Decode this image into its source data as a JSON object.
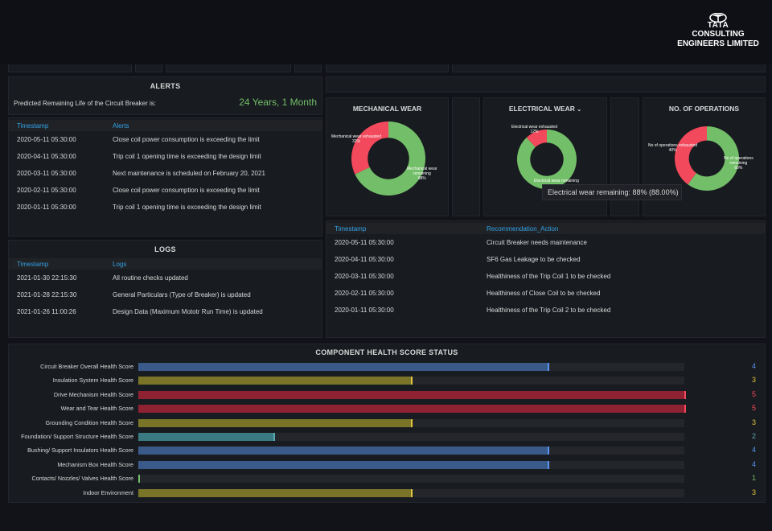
{
  "brand": {
    "logo_word": "TATA",
    "company_line1": "CONSULTING",
    "company_line2": "ENGINEERS LIMITED"
  },
  "alerts": {
    "title": "ALERTS",
    "remaining_life_label": "Predicted Remaining Life of the Circuit Breaker is:",
    "remaining_life_value": "24 Years, 1 Month",
    "columns": [
      "Timestamp",
      "Alerts"
    ],
    "rows": [
      [
        "2020-05-11 05:30:00",
        "Close coil power consumption is exceeding the limit"
      ],
      [
        "2020-04-11 05:30:00",
        "Trip coil 1 opening time is exceeding the design limit"
      ],
      [
        "2020-03-11 05:30:00",
        "Next maintenance is scheduled on February 20, 2021"
      ],
      [
        "2020-02-11 05:30:00",
        "Close coil power consumption is exceeding the limit"
      ],
      [
        "2020-01-11 05:30:00",
        "Trip coil 1 opening time is exceeding the design limit"
      ]
    ]
  },
  "logs": {
    "title": "LOGS",
    "columns": [
      "Timestamp",
      "Logs"
    ],
    "rows": [
      [
        "2021-01-30 22:15:30",
        "All routine checks updated"
      ],
      [
        "2021-01-28 22:15:30",
        "General Particulars (Type of Breaker) is updated"
      ],
      [
        "2021-01-26 11:00:26",
        "Design Data (Maximum Mototr Run Time) is updated"
      ]
    ]
  },
  "donuts": [
    {
      "title": "MECHANICAL WEAR",
      "exhausted_label": "Mechanical wear exhausted",
      "exhausted_pct": "32%",
      "remaining_label_1": "Mechanical wear",
      "remaining_label_2": "remaining",
      "remaining_pct": "68%",
      "exhausted_fraction": 0.32
    },
    {
      "title": "ELECTRICAL WEAR",
      "title_suffix": "⌄",
      "exhausted_label": "Electrical wear exhausted",
      "exhausted_pct": "12%",
      "remaining_label_1": "Electrical wear remaining",
      "exhausted_fraction": 0.12
    },
    {
      "title": "NO. OF OPERATIONS",
      "exhausted_label": "No of operations exhausted",
      "exhausted_pct": "40%",
      "remaining_label_1": "No of operations",
      "remaining_label_2": "remaining",
      "remaining_pct": "60%",
      "exhausted_fraction": 0.4
    }
  ],
  "donut_colors": {
    "remaining": "#73bf69",
    "exhausted": "#f2495c"
  },
  "tooltip": {
    "text": "Electrical wear remaining: 88% (88.00%)"
  },
  "recommendations": {
    "columns": [
      "Timestamp",
      "Recommendation_Action"
    ],
    "rows": [
      [
        "2020-05-11 05:30:00",
        "Circuit Breaker needs maintenance"
      ],
      [
        "2020-04-11 05:30:00",
        "SF6 Gas Leakage to be checked"
      ],
      [
        "2020-03-11 05:30:00",
        "Healthiness of the Trip Coil 1 to be checked"
      ],
      [
        "2020-02-11 05:30:00",
        "Healthiness of Close Coil to be checked"
      ],
      [
        "2020-01-11 05:30:00",
        "Healthiness of the Trip Coil 2 to be checked"
      ]
    ]
  },
  "health": {
    "title": "COMPONENT HEALTH SCORE STATUS",
    "max_score": 5,
    "colors": {
      "1": "#73bf69",
      "2": "#5aa8b0",
      "3": "#e0c341",
      "4": "#5794f2",
      "5": "#f2495c"
    },
    "fill_colors": {
      "1": "#56a64b",
      "2": "#3b7a82",
      "3": "#7a7429",
      "4": "#3a5a8a",
      "5": "#8e2233"
    },
    "items": [
      {
        "label": "Circuit Breaker Overall Health Score",
        "score": 4,
        "fraction": 0.75
      },
      {
        "label": "Insulation System Health Score",
        "score": 3,
        "fraction": 0.5
      },
      {
        "label": "Drive Mechanism Health Score",
        "score": 5,
        "fraction": 1.0
      },
      {
        "label": "Wear and Tear Health Score",
        "score": 5,
        "fraction": 1.0
      },
      {
        "label": "Grounding Condition Health Score",
        "score": 3,
        "fraction": 0.5
      },
      {
        "label": "Foundation/ Support Structure Health Score",
        "score": 2,
        "fraction": 0.25
      },
      {
        "label": "Bushing/ Support Insulators Health Score",
        "score": 4,
        "fraction": 0.75
      },
      {
        "label": "Mechanism Box Health Score",
        "score": 4,
        "fraction": 0.75
      },
      {
        "label": "Contacts/ Nozzles/ Valves Health Score",
        "score": 1,
        "fraction": 0.0
      },
      {
        "label": "Indoor Environment",
        "score": 3,
        "fraction": 0.5
      }
    ]
  }
}
